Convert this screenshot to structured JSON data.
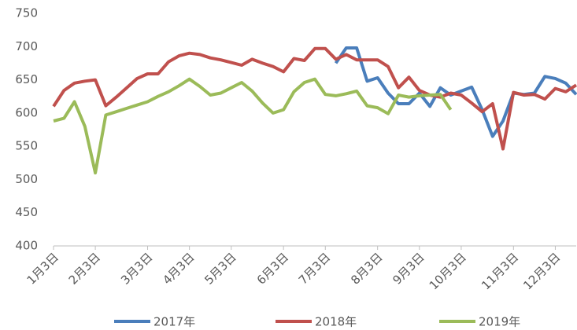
{
  "chart_data": {
    "type": "line",
    "categories": [
      "1月3日",
      null,
      null,
      null,
      "2月3日",
      null,
      null,
      null,
      null,
      "3月3日",
      null,
      null,
      null,
      "4月3日",
      null,
      null,
      null,
      "5月3日",
      null,
      null,
      null,
      null,
      "6月3日",
      null,
      null,
      null,
      "7月3日",
      null,
      null,
      null,
      null,
      "8月3日",
      null,
      null,
      null,
      "9月3日",
      null,
      null,
      null,
      "10月3日",
      null,
      null,
      null,
      null,
      "11月3日",
      null,
      null,
      null,
      "12月3日",
      null,
      null
    ],
    "series": [
      {
        "name": "2017年",
        "color": "#4a7ebb",
        "values": [
          null,
          null,
          null,
          null,
          null,
          null,
          null,
          null,
          null,
          null,
          null,
          null,
          null,
          null,
          null,
          null,
          null,
          null,
          null,
          null,
          null,
          null,
          null,
          null,
          null,
          null,
          null,
          675,
          698,
          698,
          648,
          653,
          630,
          614,
          614,
          630,
          610,
          638,
          627,
          633,
          639,
          605,
          565,
          588,
          630,
          628,
          630,
          655,
          652,
          645,
          628
        ]
      },
      {
        "name": "2018年",
        "color": "#c0504d",
        "values": [
          610,
          634,
          645,
          648,
          650,
          611,
          624,
          638,
          652,
          659,
          659,
          677,
          686,
          690,
          688,
          683,
          680,
          676,
          672,
          681,
          675,
          670,
          662,
          682,
          679,
          697,
          697,
          681,
          688,
          680,
          680,
          680,
          670,
          638,
          654,
          634,
          627,
          624,
          630,
          627,
          615,
          602,
          614,
          546,
          631,
          627,
          628,
          621,
          637,
          632,
          642
        ]
      },
      {
        "name": "2019年",
        "color": "#9bbb59",
        "values": [
          588,
          592,
          617,
          580,
          510,
          597,
          602,
          607,
          612,
          617,
          625,
          632,
          641,
          651,
          640,
          627,
          630,
          638,
          646,
          633,
          615,
          600,
          605,
          632,
          646,
          651,
          628,
          626,
          629,
          633,
          611,
          608,
          599,
          627,
          624,
          626,
          627,
          628,
          605,
          null,
          null,
          null,
          null,
          null,
          null,
          null,
          null,
          null,
          null,
          null,
          null
        ]
      }
    ],
    "ylim": [
      400,
      750
    ],
    "yticks": [
      400,
      450,
      500,
      550,
      600,
      650,
      700,
      750
    ]
  }
}
